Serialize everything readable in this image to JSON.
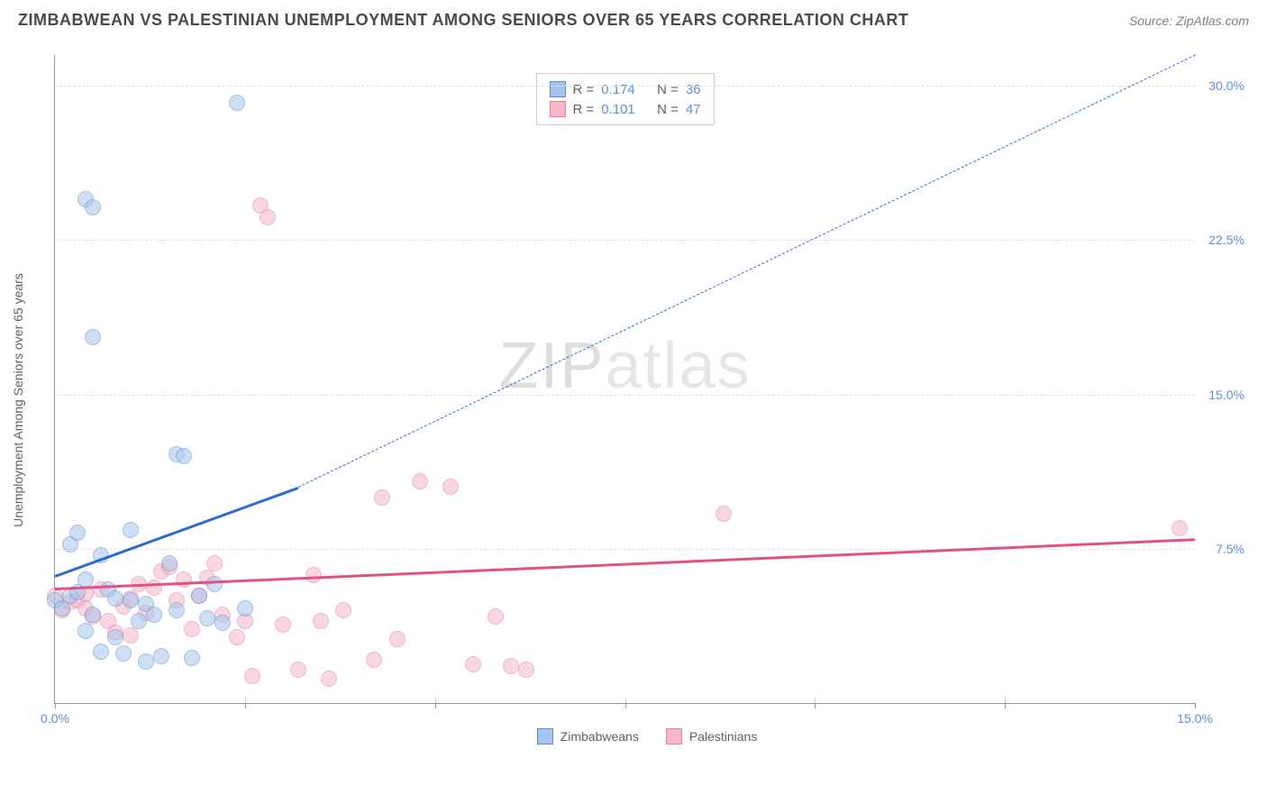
{
  "header": {
    "title": "ZIMBABWEAN VS PALESTINIAN UNEMPLOYMENT AMONG SENIORS OVER 65 YEARS CORRELATION CHART",
    "source": "Source: ZipAtlas.com"
  },
  "axes": {
    "y_label": "Unemployment Among Seniors over 65 years",
    "xlim": [
      0,
      15
    ],
    "ylim": [
      0,
      31.5
    ],
    "y_ticks": [
      7.5,
      15.0,
      22.5,
      30.0
    ],
    "y_tick_labels": [
      "7.5%",
      "15.0%",
      "22.5%",
      "30.0%"
    ],
    "x_ticks": [
      0,
      2.5,
      5,
      7.5,
      10,
      12.5,
      15
    ],
    "x_tick_labels_shown": {
      "0": "0.0%",
      "15": "15.0%"
    }
  },
  "styling": {
    "background_color": "#ffffff",
    "grid_color": "#e0e0e0",
    "axis_color": "#999999",
    "tick_label_color": "#5b8fd6",
    "title_color": "#4a4a4a",
    "title_fontsize": 18,
    "label_fontsize": 14,
    "point_radius": 9,
    "point_opacity": 0.55,
    "watermark_text_a": "ZIP",
    "watermark_text_b": "atlas"
  },
  "series": {
    "zimbabweans": {
      "label": "Zimbabweans",
      "fill_color": "#a7c5ec",
      "stroke_color": "#5b8fd6",
      "trend_color": "#2e6bd1",
      "R": "0.174",
      "N": "36",
      "trend": {
        "x1": 0.0,
        "y1": 6.2,
        "x2": 3.2,
        "y2": 10.5,
        "dash_to_x": 15.0,
        "dash_to_y": 31.5
      },
      "points": [
        [
          0.0,
          5.0
        ],
        [
          0.1,
          4.6
        ],
        [
          0.2,
          5.2
        ],
        [
          0.2,
          7.7
        ],
        [
          0.3,
          8.3
        ],
        [
          0.3,
          5.4
        ],
        [
          0.4,
          24.5
        ],
        [
          0.4,
          6.0
        ],
        [
          0.4,
          3.5
        ],
        [
          0.5,
          17.8
        ],
        [
          0.5,
          4.3
        ],
        [
          0.5,
          24.1
        ],
        [
          0.6,
          2.5
        ],
        [
          0.6,
          7.2
        ],
        [
          0.7,
          5.5
        ],
        [
          0.8,
          3.2
        ],
        [
          0.8,
          5.1
        ],
        [
          0.9,
          2.4
        ],
        [
          1.0,
          8.4
        ],
        [
          1.0,
          5.0
        ],
        [
          1.1,
          4.0
        ],
        [
          1.2,
          2.0
        ],
        [
          1.2,
          4.8
        ],
        [
          1.3,
          4.3
        ],
        [
          1.4,
          2.3
        ],
        [
          1.5,
          6.8
        ],
        [
          1.6,
          4.5
        ],
        [
          1.6,
          12.1
        ],
        [
          1.7,
          12.0
        ],
        [
          1.8,
          2.2
        ],
        [
          1.9,
          5.2
        ],
        [
          2.0,
          4.1
        ],
        [
          2.1,
          5.8
        ],
        [
          2.2,
          3.9
        ],
        [
          2.4,
          29.2
        ],
        [
          2.5,
          4.6
        ]
      ]
    },
    "palestinians": {
      "label": "Palestinians",
      "fill_color": "#f4b8c8",
      "stroke_color": "#e87ca0",
      "trend_color": "#e35183",
      "R": "0.101",
      "N": "47",
      "trend": {
        "x1": 0.0,
        "y1": 5.6,
        "x2": 15.0,
        "y2": 8.0
      },
      "points": [
        [
          0.0,
          5.2
        ],
        [
          0.1,
          4.5
        ],
        [
          0.2,
          4.9
        ],
        [
          0.3,
          5.0
        ],
        [
          0.4,
          5.3
        ],
        [
          0.4,
          4.6
        ],
        [
          0.5,
          4.2
        ],
        [
          0.6,
          5.5
        ],
        [
          0.7,
          4.0
        ],
        [
          0.8,
          3.4
        ],
        [
          0.9,
          4.7
        ],
        [
          1.0,
          5.1
        ],
        [
          1.0,
          3.3
        ],
        [
          1.1,
          5.8
        ],
        [
          1.2,
          4.4
        ],
        [
          1.3,
          5.6
        ],
        [
          1.4,
          6.4
        ],
        [
          1.5,
          6.6
        ],
        [
          1.6,
          5.0
        ],
        [
          1.7,
          6.0
        ],
        [
          1.8,
          3.6
        ],
        [
          1.9,
          5.2
        ],
        [
          2.0,
          6.1
        ],
        [
          2.1,
          6.8
        ],
        [
          2.2,
          4.3
        ],
        [
          2.4,
          3.2
        ],
        [
          2.5,
          4.0
        ],
        [
          2.6,
          1.3
        ],
        [
          2.7,
          24.2
        ],
        [
          2.8,
          23.6
        ],
        [
          3.0,
          3.8
        ],
        [
          3.2,
          1.6
        ],
        [
          3.4,
          6.2
        ],
        [
          3.5,
          4.0
        ],
        [
          3.6,
          1.2
        ],
        [
          3.8,
          4.5
        ],
        [
          4.2,
          2.1
        ],
        [
          4.3,
          10.0
        ],
        [
          4.5,
          3.1
        ],
        [
          4.8,
          10.8
        ],
        [
          5.2,
          10.5
        ],
        [
          5.5,
          1.9
        ],
        [
          5.8,
          4.2
        ],
        [
          6.0,
          1.8
        ],
        [
          6.2,
          1.6
        ],
        [
          8.8,
          9.2
        ],
        [
          14.8,
          8.5
        ]
      ]
    }
  },
  "legend_stats": {
    "r_label": "R =",
    "n_label": "N ="
  },
  "bottom_legend": {
    "items": [
      "Zimbabweans",
      "Palestinians"
    ]
  }
}
